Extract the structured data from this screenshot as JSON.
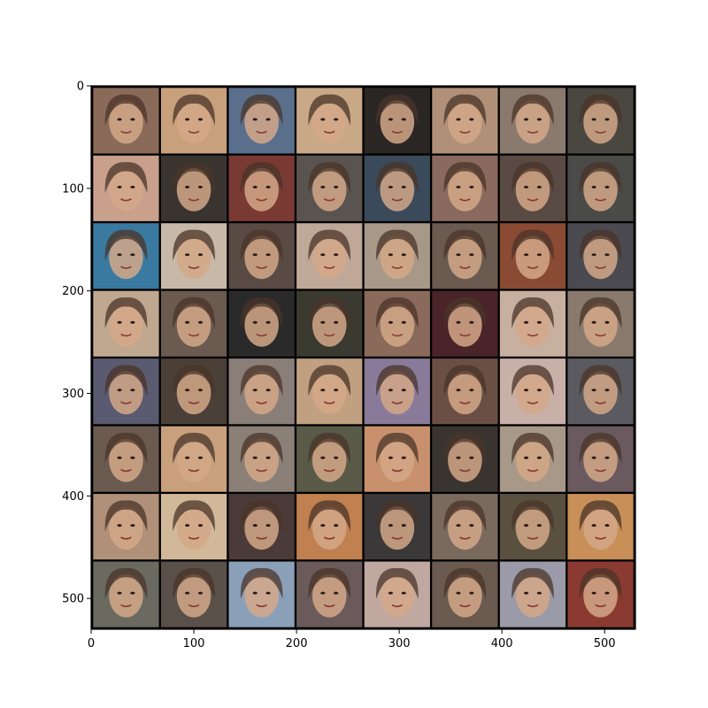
{
  "chart_data": {
    "type": "image-grid",
    "rows": 8,
    "cols": 8,
    "xlim": [
      0,
      530
    ],
    "ylim": [
      530,
      0
    ],
    "xticks": [
      "0",
      "100",
      "200",
      "300",
      "400",
      "500"
    ],
    "yticks": [
      "0",
      "100",
      "200",
      "300",
      "400",
      "500"
    ],
    "tile_colors": [
      [
        "#8a6a58",
        "#c9a07c",
        "#5a6f8c",
        "#c8a886",
        "#2a2624",
        "#b09078",
        "#8a7a6e",
        "#4a4640"
      ],
      [
        "#c8a08c",
        "#3a3430",
        "#7a3a34",
        "#5a5450",
        "#3a4a5a",
        "#8a6a5e",
        "#5a4a44",
        "#4a4a48"
      ],
      [
        "#3a7aa0",
        "#c8b8a8",
        "#5a4a44",
        "#c0a898",
        "#a89888",
        "#6a5a50",
        "#8a4a34",
        "#4a4a50"
      ],
      [
        "#c0a890",
        "#6a5a50",
        "#2a2a2a",
        "#3a3a30",
        "#8a6a5a",
        "#4a2428",
        "#c8b0a0",
        "#8a7a6e"
      ],
      [
        "#5a5a70",
        "#4a4038",
        "#8a7e78",
        "#c0a080",
        "#8a7a9a",
        "#6a5044",
        "#c8b0a8",
        "#5a5a60"
      ],
      [
        "#6a5a50",
        "#c8a07c",
        "#8a8078",
        "#5a5a48",
        "#c8906c",
        "#3a3430",
        "#a89888",
        "#6a5a60"
      ],
      [
        "#b09078",
        "#d0b898",
        "#4a3a38",
        "#c08050",
        "#3a3838",
        "#7a6a5e",
        "#5a5040",
        "#c89058"
      ],
      [
        "#6a6a60",
        "#5a504a",
        "#8aa0b8",
        "#6a5a5a",
        "#c0a8a0",
        "#6a5a50",
        "#9a9aa8",
        "#8a3a30"
      ]
    ]
  }
}
